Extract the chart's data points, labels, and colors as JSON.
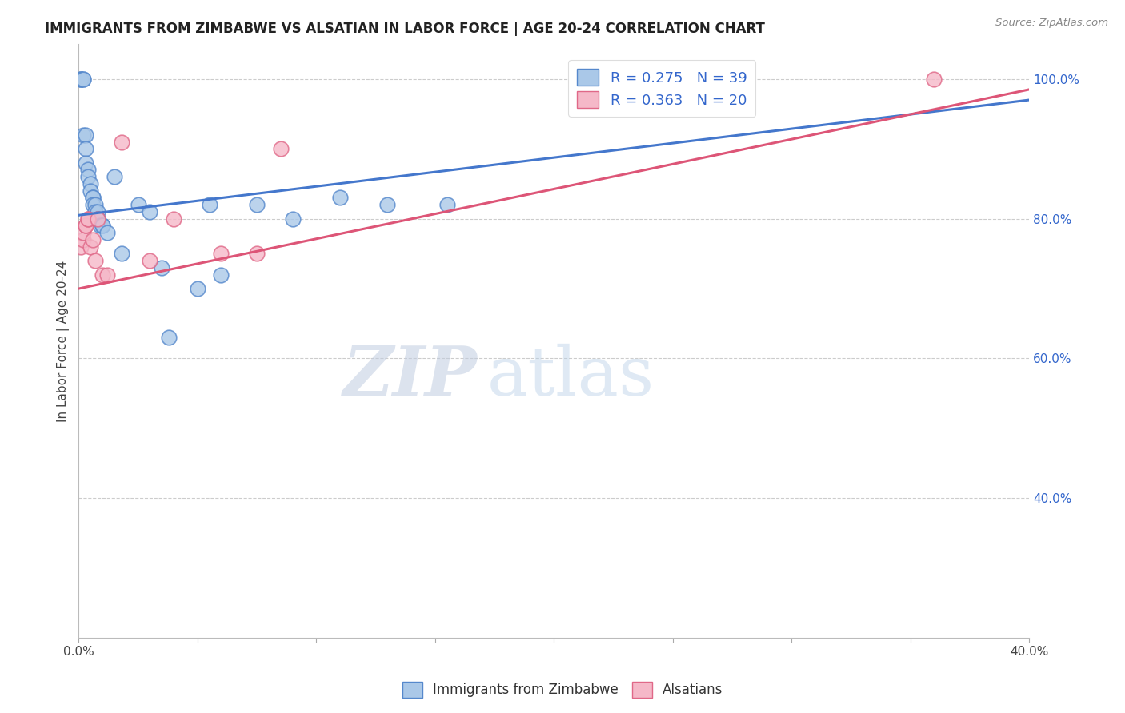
{
  "title": "IMMIGRANTS FROM ZIMBABWE VS ALSATIAN IN LABOR FORCE | AGE 20-24 CORRELATION CHART",
  "source": "Source: ZipAtlas.com",
  "ylabel_label": "In Labor Force | Age 20-24",
  "x_min": 0.0,
  "x_max": 0.4,
  "y_min": 0.2,
  "y_max": 1.05,
  "y_ticks": [
    0.4,
    0.6,
    0.8,
    1.0
  ],
  "y_tick_labels": [
    "40.0%",
    "60.0%",
    "80.0%",
    "100.0%"
  ],
  "grid_color": "#cccccc",
  "background_color": "#ffffff",
  "blue_scatter_color": "#aac8e8",
  "blue_scatter_edge": "#5588cc",
  "pink_scatter_color": "#f5b8c8",
  "pink_scatter_edge": "#e06888",
  "blue_line_color": "#4477cc",
  "pink_line_color": "#dd5577",
  "R_blue": 0.275,
  "N_blue": 39,
  "R_pink": 0.363,
  "N_pink": 20,
  "legend_text_color": "#3366cc",
  "watermark_zip": "ZIP",
  "watermark_atlas": "atlas",
  "blue_x": [
    0.001,
    0.001,
    0.001,
    0.002,
    0.002,
    0.002,
    0.003,
    0.003,
    0.003,
    0.004,
    0.004,
    0.005,
    0.005,
    0.006,
    0.006,
    0.006,
    0.007,
    0.007,
    0.008,
    0.008,
    0.008,
    0.009,
    0.01,
    0.01,
    0.012,
    0.015,
    0.018,
    0.025,
    0.03,
    0.035,
    0.038,
    0.05,
    0.055,
    0.06,
    0.075,
    0.09,
    0.11,
    0.13,
    0.155
  ],
  "blue_y": [
    1.0,
    1.0,
    1.0,
    1.0,
    1.0,
    0.92,
    0.92,
    0.9,
    0.88,
    0.87,
    0.86,
    0.85,
    0.84,
    0.83,
    0.83,
    0.82,
    0.82,
    0.81,
    0.81,
    0.8,
    0.8,
    0.79,
    0.79,
    0.79,
    0.78,
    0.86,
    0.75,
    0.82,
    0.81,
    0.73,
    0.63,
    0.7,
    0.82,
    0.72,
    0.82,
    0.8,
    0.83,
    0.82,
    0.82
  ],
  "pink_x": [
    0.001,
    0.002,
    0.002,
    0.003,
    0.003,
    0.004,
    0.004,
    0.005,
    0.006,
    0.007,
    0.008,
    0.01,
    0.012,
    0.018,
    0.03,
    0.04,
    0.06,
    0.075,
    0.085,
    0.36
  ],
  "pink_y": [
    0.76,
    0.77,
    0.78,
    0.79,
    0.79,
    0.8,
    0.8,
    0.76,
    0.77,
    0.74,
    0.8,
    0.72,
    0.72,
    0.91,
    0.74,
    0.8,
    0.75,
    0.75,
    0.9,
    1.0
  ],
  "blue_line_x0": 0.0,
  "blue_line_y0": 0.805,
  "blue_line_x1": 0.4,
  "blue_line_y1": 0.97,
  "pink_line_x0": 0.0,
  "pink_line_y0": 0.7,
  "pink_line_x1": 0.4,
  "pink_line_y1": 0.985
}
